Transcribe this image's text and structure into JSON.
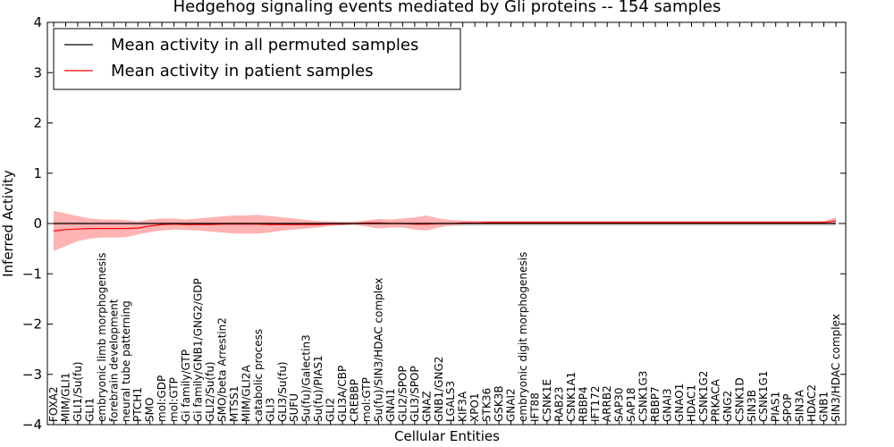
{
  "chart_data": {
    "type": "line",
    "title": "Hedgehog signaling events mediated by Gli proteins -- 154 samples",
    "xlabel": "Cellular Entities",
    "ylabel": "Inferred Activity",
    "ylim": [
      -4,
      4
    ],
    "yticks": [
      "4",
      "3",
      "2",
      "1",
      "0",
      "−1",
      "−2",
      "−3",
      "−4"
    ],
    "ytick_values": [
      4,
      3,
      2,
      1,
      0,
      -1,
      -2,
      -3,
      -4
    ],
    "legend_position": "top-left",
    "colors": {
      "permuted": "#000000",
      "patient": "#ff0000",
      "patient_band": "#ff9999",
      "permuted_band": "#d0d0d0"
    },
    "categories": [
      "FOXA2",
      "MIM/GLI1",
      "GLI1/Su(fu)",
      "GLI1",
      "embryonic limb morphogenesis",
      "forebrain development",
      "neural tube patterning",
      "PTCH1",
      "SMO",
      "mol:GDP",
      "mol:GTP",
      "Gi family/GTP",
      "Gi family/GNB1/GNG2/GDP",
      "GLI2/Su(fu)",
      "SMO/beta Arrestin2",
      "MTSS1",
      "MIM/GLI2A",
      "catabolic process",
      "GLI3",
      "GLI3/Su(fu)",
      "SUFU",
      "Su(fu)/Galectin3",
      "Su(fu)/PIAS1",
      "GLI2",
      "GLI3A/CBP",
      "CREBBP",
      "mol:GTP",
      "Su(fu)/SIN3/HDAC complex",
      "GNAI1",
      "GLI2/SPOP",
      "GLI3/SPOP",
      "GNAZ",
      "GNB1/GNG2",
      "LGALS3",
      "KIF3A",
      "XPO1",
      "STK36",
      "GSK3B",
      "GNAI2",
      "embryonic digit morphogenesis",
      "IFT88",
      "CSNK1E",
      "RAB23",
      "CSNK1A1",
      "RBBP4",
      "IFT172",
      "ARRB2",
      "SAP30",
      "SAP18",
      "CSNK1G3",
      "RBBP7",
      "GNAI3",
      "GNAO1",
      "HDAC1",
      "CSNK1G2",
      "PRKACA",
      "GNG2",
      "CSNK1D",
      "SIN3B",
      "CSNK1G1",
      "PIAS1",
      "SPOP",
      "SIN3A",
      "HDAC2",
      "GNB1",
      "SIN3/HDAC complex"
    ],
    "series": [
      {
        "name": "Mean activity in all permuted samples",
        "values": [
          0,
          0,
          0,
          0,
          0,
          0,
          0,
          0,
          0,
          0,
          0,
          0,
          0,
          0,
          0,
          0,
          0,
          0,
          0,
          0,
          0,
          0,
          0,
          0,
          0,
          0,
          0,
          0,
          0,
          0,
          0,
          0,
          0,
          0,
          0,
          0,
          0,
          0,
          0,
          0,
          0,
          0,
          0,
          0,
          0,
          0,
          0,
          0,
          0,
          0,
          0,
          0,
          0,
          0,
          0,
          0,
          0,
          0,
          0,
          0,
          0,
          0,
          0,
          0,
          0,
          0
        ],
        "lower": [
          -0.04,
          -0.04,
          -0.04,
          -0.04,
          -0.04,
          -0.04,
          -0.04,
          -0.04,
          -0.04,
          -0.04,
          -0.04,
          -0.04,
          -0.04,
          -0.04,
          -0.04,
          -0.04,
          -0.04,
          -0.04,
          -0.04,
          -0.04,
          -0.04,
          -0.04,
          -0.04,
          -0.04,
          -0.04,
          -0.04,
          -0.05,
          -0.05,
          -0.05,
          -0.05,
          -0.05,
          -0.05,
          -0.05,
          -0.05,
          -0.05,
          -0.05,
          -0.05,
          -0.05,
          -0.05,
          -0.05,
          -0.05,
          -0.05,
          -0.05,
          -0.05,
          -0.05,
          -0.05,
          -0.05,
          -0.05,
          -0.05,
          -0.05,
          -0.05,
          -0.05,
          -0.05,
          -0.05,
          -0.05,
          -0.05,
          -0.05,
          -0.05,
          -0.05,
          -0.05,
          -0.05,
          -0.05,
          -0.05,
          -0.05,
          -0.05,
          -0.05
        ],
        "upper": [
          0.04,
          0.04,
          0.04,
          0.04,
          0.04,
          0.04,
          0.04,
          0.04,
          0.04,
          0.04,
          0.04,
          0.04,
          0.04,
          0.04,
          0.04,
          0.04,
          0.04,
          0.04,
          0.04,
          0.04,
          0.04,
          0.04,
          0.04,
          0.04,
          0.04,
          0.04,
          0.05,
          0.05,
          0.05,
          0.05,
          0.05,
          0.05,
          0.05,
          0.05,
          0.05,
          0.05,
          0.05,
          0.05,
          0.05,
          0.05,
          0.05,
          0.05,
          0.05,
          0.05,
          0.05,
          0.05,
          0.05,
          0.05,
          0.05,
          0.05,
          0.05,
          0.05,
          0.05,
          0.05,
          0.05,
          0.05,
          0.05,
          0.05,
          0.05,
          0.05,
          0.05,
          0.05,
          0.05,
          0.05,
          0.05,
          0.05
        ]
      },
      {
        "name": "Mean activity in patient samples",
        "values": [
          -0.15,
          -0.12,
          -0.11,
          -0.1,
          -0.1,
          -0.1,
          -0.1,
          -0.09,
          -0.05,
          -0.02,
          -0.01,
          -0.02,
          -0.02,
          -0.02,
          -0.01,
          -0.01,
          -0.01,
          -0.01,
          -0.02,
          -0.02,
          -0.02,
          -0.02,
          -0.02,
          -0.01,
          -0.01,
          0,
          0.01,
          0.01,
          0,
          0,
          -0.01,
          -0.01,
          0,
          0,
          0.01,
          0.01,
          0.02,
          0.02,
          0.02,
          0.02,
          0.02,
          0.02,
          0.02,
          0.02,
          0.02,
          0.02,
          0.02,
          0.02,
          0.02,
          0.02,
          0.02,
          0.02,
          0.02,
          0.02,
          0.02,
          0.02,
          0.02,
          0.02,
          0.02,
          0.02,
          0.02,
          0.02,
          0.02,
          0.02,
          0.02,
          0.05
        ],
        "lower": [
          -0.55,
          -0.45,
          -0.35,
          -0.3,
          -0.28,
          -0.28,
          -0.27,
          -0.22,
          -0.17,
          -0.14,
          -0.12,
          -0.13,
          -0.14,
          -0.16,
          -0.18,
          -0.2,
          -0.2,
          -0.2,
          -0.18,
          -0.14,
          -0.12,
          -0.1,
          -0.08,
          -0.05,
          -0.03,
          -0.02,
          -0.06,
          -0.1,
          -0.08,
          -0.08,
          -0.12,
          -0.14,
          -0.08,
          -0.04,
          -0.02,
          -0.01,
          0,
          0,
          0,
          0,
          0,
          0,
          0,
          0,
          0,
          0,
          0,
          0,
          0,
          0,
          0,
          0,
          0,
          0,
          0,
          0,
          0,
          0,
          0,
          0,
          0,
          0,
          0,
          0,
          0,
          -0.02
        ],
        "upper": [
          0.25,
          0.2,
          0.15,
          0.1,
          0.08,
          0.08,
          0.07,
          0.04,
          0.08,
          0.1,
          0.1,
          0.08,
          0.1,
          0.12,
          0.14,
          0.16,
          0.16,
          0.17,
          0.15,
          0.12,
          0.1,
          0.07,
          0.05,
          0.04,
          0.03,
          0.03,
          0.06,
          0.09,
          0.08,
          0.1,
          0.12,
          0.16,
          0.1,
          0.07,
          0.06,
          0.05,
          0.05,
          0.05,
          0.05,
          0.05,
          0.05,
          0.05,
          0.05,
          0.05,
          0.05,
          0.05,
          0.05,
          0.05,
          0.05,
          0.05,
          0.05,
          0.05,
          0.05,
          0.05,
          0.05,
          0.05,
          0.05,
          0.05,
          0.05,
          0.05,
          0.05,
          0.05,
          0.05,
          0.05,
          0.05,
          0.12
        ]
      }
    ]
  }
}
